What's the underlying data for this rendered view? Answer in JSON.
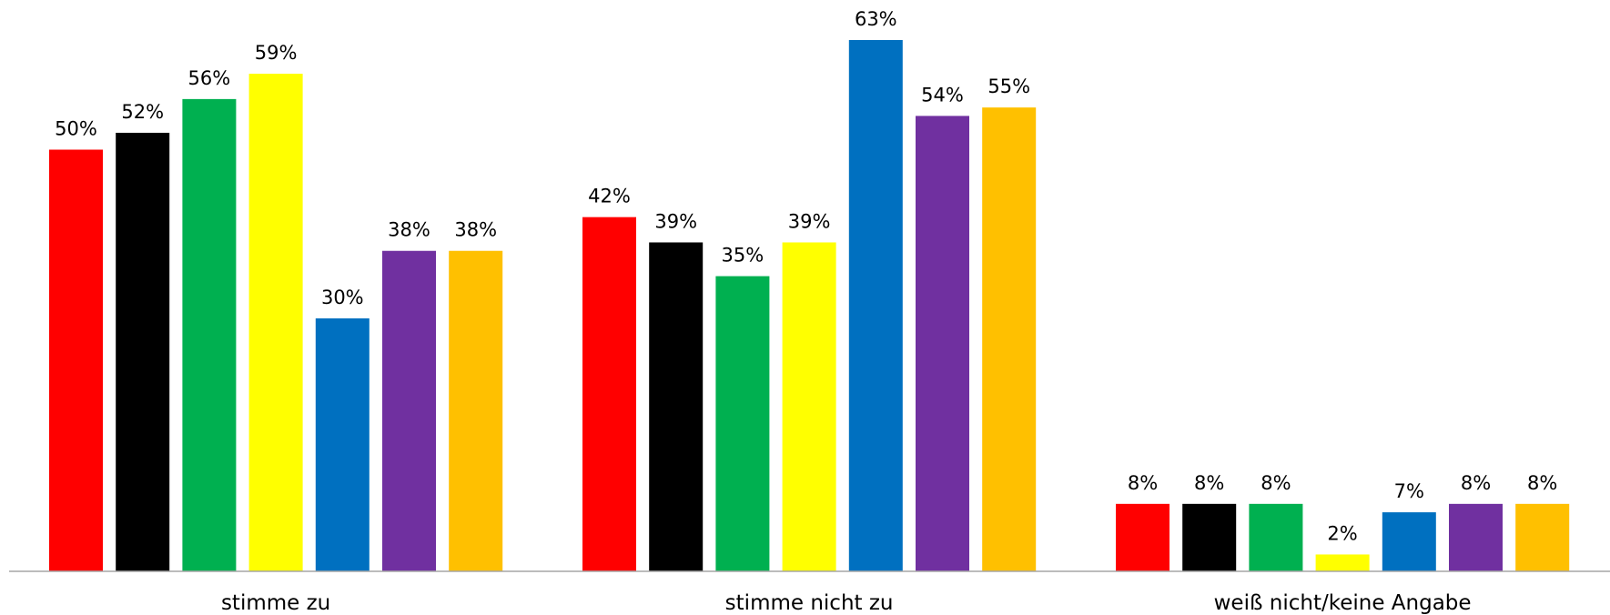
{
  "chart_data": {
    "type": "bar",
    "categories": [
      "stimme zu",
      "stimme nicht zu",
      "weiß nicht/keine Angabe"
    ],
    "series": [
      {
        "color": "#FF0000",
        "values": [
          50,
          42,
          8
        ],
        "labels": [
          "50%",
          "42%",
          "8%"
        ]
      },
      {
        "color": "#000000",
        "values": [
          52,
          39,
          8
        ],
        "labels": [
          "52%",
          "39%",
          "8%"
        ]
      },
      {
        "color": "#00B050",
        "values": [
          56,
          35,
          8
        ],
        "labels": [
          "56%",
          "35%",
          "8%"
        ]
      },
      {
        "color": "#FFFF00",
        "values": [
          59,
          39,
          2
        ],
        "labels": [
          "59%",
          "39%",
          "2%"
        ]
      },
      {
        "color": "#0070C0",
        "values": [
          30,
          63,
          7
        ],
        "labels": [
          "30%",
          "63%",
          "7%"
        ]
      },
      {
        "color": "#7030A0",
        "values": [
          38,
          54,
          8
        ],
        "labels": [
          "38%",
          "54%",
          "8%"
        ]
      },
      {
        "color": "#FFC000",
        "values": [
          38,
          55,
          8
        ],
        "labels": [
          "38%",
          "55%",
          "8%"
        ]
      }
    ],
    "ylim": [
      0,
      63
    ],
    "grid": false,
    "legend": "none",
    "data_labels": true
  }
}
